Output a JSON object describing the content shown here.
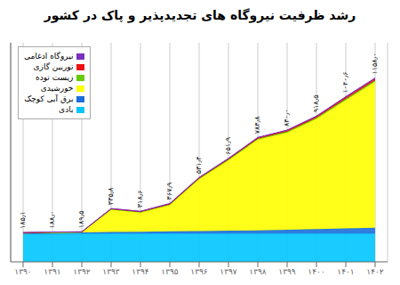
{
  "chart_data": {
    "type": "area",
    "title": "رشد ظرفیت نیروگاه های تجدیدپذیر و پاک در کشور",
    "categories": [
      "۱۳۹۰",
      "۱۳۹۱",
      "۱۳۹۲",
      "۱۳۹۳",
      "۱۳۹۴",
      "۱۳۹۵",
      "۱۳۹۶",
      "۱۳۹۷",
      "۱۳۹۸",
      "۱۳۹۹",
      "۱۴۰۰",
      "۱۴۰۱",
      "۱۴۰۲"
    ],
    "series": [
      {
        "name": "بادی",
        "color": "#00c5ff",
        "values": [
          175.0,
          177.0,
          178.0,
          178.0,
          178.0,
          178.0,
          178.0,
          178.0,
          178.0,
          178.0,
          178.0,
          178.0,
          178.0
        ]
      },
      {
        "name": "برق آبی کوچک",
        "color": "#1a6fdc",
        "values": [
          5.0,
          6.0,
          6.5,
          10.0,
          12.0,
          14.0,
          16.0,
          18.0,
          20.0,
          24.0,
          28.0,
          32.0,
          36.0
        ]
      },
      {
        "name": "خورشیدی",
        "color": "#ffff00",
        "values": [
          1.0,
          1.5,
          2.0,
          140.0,
          120.0,
          165.0,
          327.0,
          443.0,
          572.0,
          612.0,
          694.0,
          808.0,
          920.0
        ]
      },
      {
        "name": "زیست توده",
        "color": "#66cc00",
        "values": [
          0.6,
          0.8,
          0.6,
          4.0,
          4.5,
          5.0,
          5.0,
          5.5,
          6.0,
          6.5,
          7.5,
          9.0,
          9.5
        ]
      },
      {
        "name": "توربین گازی",
        "color": "#ee1111",
        "values": [
          2.5,
          1.7,
          1.4,
          2.3,
          2.6,
          3.5,
          3.5,
          4.5,
          5.0,
          6.5,
          7.5,
          9.5,
          10.0
        ]
      },
      {
        "name": "نیروگاه ادغامی",
        "color": "#7b2fbe",
        "values": [
          1.0,
          1.0,
          1.0,
          1.5,
          1.5,
          2.4,
          1.9,
          2.9,
          2.8,
          3.0,
          3.5,
          4.1,
          4.5
        ]
      }
    ],
    "stacked": true,
    "totals": [
      185.1,
      188.0,
      189.5,
      335.8,
      318.6,
      367.9,
      531.4,
      651.9,
      783.8,
      830.0,
      918.5,
      1040.6,
      1158.0
    ],
    "totals_labels": [
      "۱۸۵٫۱",
      "۱۸۸٫۰",
      "۱۸۹٫۵",
      "۳۳۵٫۸",
      "۳۱۸٫۶",
      "۳۶۷٫۹",
      "۵۳۱٫۴",
      "۶۵۱٫۹",
      "۷۸۳٫۸",
      "۸۳۰٫۰",
      "۹۱۸٫۵",
      "۱۰۴۰٫۶",
      "۱۱۵۸٫۰"
    ],
    "ylim": [
      0,
      1380
    ],
    "tick_labels": "x",
    "grid": true,
    "legend": "upper left"
  }
}
